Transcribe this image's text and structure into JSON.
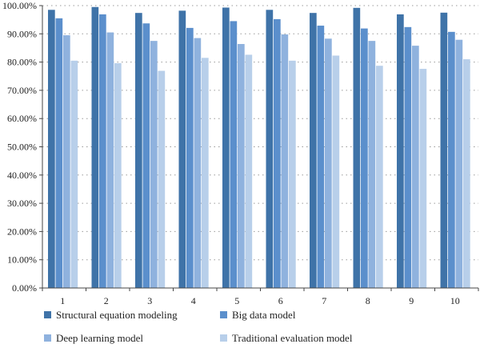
{
  "chart_data": {
    "type": "bar",
    "title": "",
    "xlabel": "",
    "ylabel": "",
    "ylim": [
      0,
      100
    ],
    "yticks": [
      0,
      10,
      20,
      30,
      40,
      50,
      60,
      70,
      80,
      90,
      100
    ],
    "ytick_labels": [
      "0.00%",
      "10.00%",
      "20.00%",
      "30.00%",
      "40.00%",
      "50.00%",
      "60.00%",
      "70.00%",
      "80.00%",
      "90.00%",
      "100.00%"
    ],
    "grid": "horizontal-dotted",
    "legend_position": "bottom",
    "categories": [
      "1",
      "2",
      "3",
      "4",
      "5",
      "6",
      "7",
      "8",
      "9",
      "10"
    ],
    "series": [
      {
        "name": "Structural equation modeling",
        "color": "#3f73a8",
        "values": [
          98.5,
          99.5,
          97.4,
          98.2,
          99.3,
          98.5,
          97.4,
          99.2,
          96.9,
          97.5
        ]
      },
      {
        "name": "Big data model",
        "color": "#5b8fcc",
        "values": [
          95.5,
          96.9,
          93.7,
          92.1,
          94.5,
          95.2,
          92.9,
          91.9,
          92.4,
          90.7
        ]
      },
      {
        "name": "Deep learning model",
        "color": "#8fb2de",
        "values": [
          89.5,
          90.5,
          87.5,
          88.5,
          86.4,
          89.8,
          88.3,
          87.5,
          85.8,
          87.9
        ]
      },
      {
        "name": "Traditional evaluation model",
        "color": "#b8cfea",
        "values": [
          80.5,
          79.6,
          76.9,
          81.5,
          82.6,
          80.5,
          82.3,
          78.7,
          77.6,
          81.0
        ]
      }
    ]
  }
}
